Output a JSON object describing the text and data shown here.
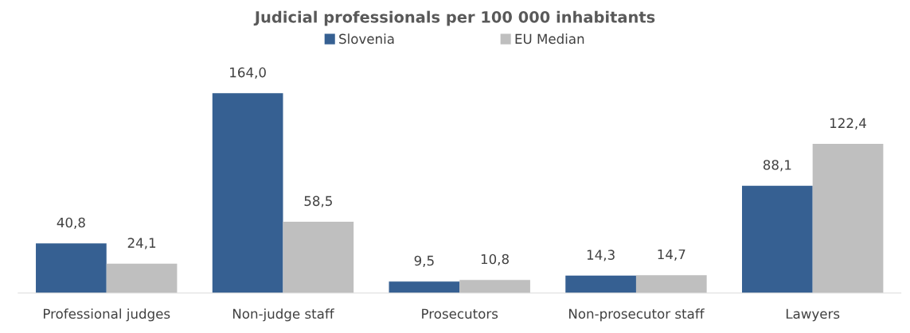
{
  "chart_data": {
    "type": "bar",
    "title": "Judicial professionals per 100 000 inhabitants",
    "categories": [
      "Professional judges",
      "Non-judge staff",
      "Prosecutors",
      "Non-prosecutor staff",
      "Lawyers"
    ],
    "series": [
      {
        "name": "Slovenia",
        "color": "#366092",
        "values": [
          40.8,
          164.0,
          9.5,
          14.3,
          88.1
        ],
        "value_labels": [
          "40,8",
          "164,0",
          "9,5",
          "14,3",
          "88,1"
        ]
      },
      {
        "name": "EU Median",
        "color": "#bfbfbf",
        "values": [
          24.1,
          58.5,
          10.8,
          14.7,
          122.4
        ],
        "value_labels": [
          "24,1",
          "58,5",
          "10,8",
          "14,7",
          "122,4"
        ]
      }
    ],
    "legend": "top"
  }
}
